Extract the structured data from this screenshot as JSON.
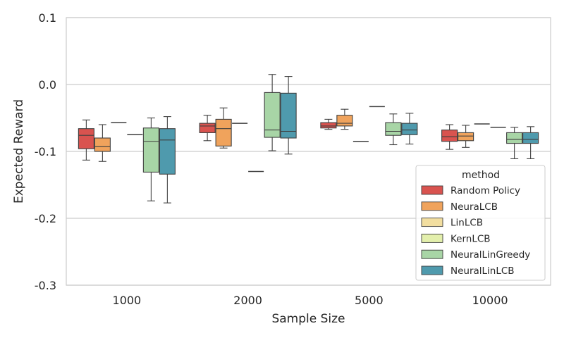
{
  "chart_data": {
    "type": "box",
    "xlabel": "Sample Size",
    "ylabel": "Expected Reward",
    "ylim": [
      -0.3,
      0.1
    ],
    "yticks": [
      0.1,
      0.0,
      -0.1,
      -0.2,
      -0.3
    ],
    "ytick_labels": [
      "0.1",
      "0.0",
      "-0.1",
      "-0.2",
      "-0.3"
    ],
    "grid": "horizontal",
    "categories": [
      "1000",
      "2000",
      "5000",
      "10000"
    ],
    "legend": {
      "title": "method",
      "position": "lower-right"
    },
    "series": [
      {
        "name": "Random Policy",
        "color": "#d9534f",
        "boxes": [
          {
            "min": -0.113,
            "q1": -0.096,
            "median": -0.076,
            "q3": -0.066,
            "max": -0.053
          },
          {
            "min": -0.084,
            "q1": -0.072,
            "median": -0.062,
            "q3": -0.058,
            "max": -0.046
          },
          {
            "min": -0.067,
            "q1": -0.065,
            "median": -0.062,
            "q3": -0.057,
            "max": -0.052
          },
          {
            "min": -0.097,
            "q1": -0.085,
            "median": -0.078,
            "q3": -0.068,
            "max": -0.06
          }
        ]
      },
      {
        "name": "NeuraLCB",
        "color": "#f0a35c",
        "boxes": [
          {
            "min": -0.115,
            "q1": -0.1,
            "median": -0.093,
            "q3": -0.08,
            "max": -0.06
          },
          {
            "min": -0.095,
            "q1": -0.092,
            "median": -0.066,
            "q3": -0.052,
            "max": -0.035
          },
          {
            "min": -0.067,
            "q1": -0.062,
            "median": -0.058,
            "q3": -0.046,
            "max": -0.037
          },
          {
            "min": -0.094,
            "q1": -0.084,
            "median": -0.077,
            "q3": -0.072,
            "max": -0.061
          }
        ]
      },
      {
        "name": "LinLCB",
        "color": "#f2dea0",
        "boxes": [
          {
            "min": -0.057,
            "q1": -0.057,
            "median": -0.057,
            "q3": -0.057,
            "max": -0.057
          },
          {
            "min": -0.058,
            "q1": -0.058,
            "median": -0.058,
            "q3": -0.058,
            "max": -0.058
          },
          {
            "min": -0.085,
            "q1": -0.085,
            "median": -0.085,
            "q3": -0.085,
            "max": -0.085
          },
          {
            "min": -0.059,
            "q1": -0.059,
            "median": -0.059,
            "q3": -0.059,
            "max": -0.059
          }
        ]
      },
      {
        "name": "KernLCB",
        "color": "#e3efac",
        "boxes": [
          {
            "min": -0.075,
            "q1": -0.075,
            "median": -0.075,
            "q3": -0.075,
            "max": -0.075
          },
          {
            "min": -0.13,
            "q1": -0.13,
            "median": -0.13,
            "q3": -0.13,
            "max": -0.13
          },
          {
            "min": -0.033,
            "q1": -0.033,
            "median": -0.033,
            "q3": -0.033,
            "max": -0.033
          },
          {
            "min": -0.064,
            "q1": -0.064,
            "median": -0.064,
            "q3": -0.064,
            "max": -0.064
          }
        ]
      },
      {
        "name": "NeuralLinGreedy",
        "color": "#a8d5a6",
        "boxes": [
          {
            "min": -0.174,
            "q1": -0.131,
            "median": -0.085,
            "q3": -0.065,
            "max": -0.05
          },
          {
            "min": -0.099,
            "q1": -0.079,
            "median": -0.068,
            "q3": -0.012,
            "max": 0.015
          },
          {
            "min": -0.09,
            "q1": -0.076,
            "median": -0.07,
            "q3": -0.057,
            "max": -0.044
          },
          {
            "min": -0.111,
            "q1": -0.088,
            "median": -0.082,
            "q3": -0.072,
            "max": -0.064
          }
        ]
      },
      {
        "name": "NeuralLinLCB",
        "color": "#4f9aad",
        "boxes": [
          {
            "min": -0.177,
            "q1": -0.134,
            "median": -0.083,
            "q3": -0.066,
            "max": -0.048
          },
          {
            "min": -0.104,
            "q1": -0.08,
            "median": -0.07,
            "q3": -0.013,
            "max": 0.012
          },
          {
            "min": -0.089,
            "q1": -0.075,
            "median": -0.068,
            "q3": -0.058,
            "max": -0.043
          },
          {
            "min": -0.111,
            "q1": -0.088,
            "median": -0.082,
            "q3": -0.072,
            "max": -0.063
          }
        ]
      }
    ]
  }
}
